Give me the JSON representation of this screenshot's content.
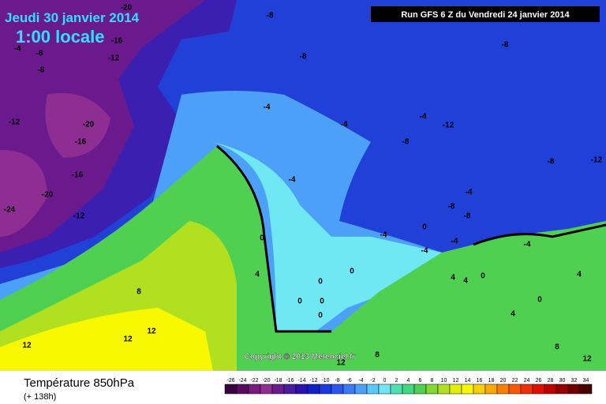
{
  "header": {
    "date": "Jeudi 30 janvier 2014",
    "time": "1:00 locale",
    "run": "Run GFS 6 Z du Vendredi 24 janvier 2014"
  },
  "map": {
    "copyright": "Copyright © 2013 Meteociel.fr",
    "contour_labels": [
      -20,
      -8,
      -16,
      -4,
      -8,
      -12,
      -8,
      -8,
      -8,
      -12,
      -20,
      -16,
      -4,
      -4,
      -4,
      -12,
      -8,
      -16,
      -8,
      -12,
      -20,
      -4,
      -24,
      -12,
      -4,
      -8,
      -8,
      -4,
      0,
      -4,
      -4,
      -4,
      0,
      0,
      4,
      4,
      4,
      0,
      4,
      8,
      0,
      0,
      0,
      0,
      0,
      4,
      12,
      12,
      12,
      8,
      8,
      12,
      12
    ]
  },
  "footer": {
    "title": "Température 850hPa",
    "subtitle": "(+ 138h)"
  },
  "scale": {
    "ticks": [
      -26,
      -24,
      -22,
      -20,
      -18,
      -16,
      -14,
      -12,
      -10,
      -8,
      -6,
      -4,
      -2,
      0,
      2,
      4,
      6,
      8,
      10,
      12,
      14,
      16,
      18,
      20,
      22,
      24,
      26,
      28,
      30,
      32,
      34
    ],
    "colors": [
      "#3a0040",
      "#5a0a5e",
      "#7a1a80",
      "#8e2e92",
      "#6a1a8c",
      "#4a1aa0",
      "#2a10b0",
      "#1020c8",
      "#1838e0",
      "#2a55f0",
      "#3c7af5",
      "#4da0f8",
      "#5cc8fa",
      "#70e8f4",
      "#50e0b0",
      "#40d880",
      "#50d050",
      "#80d830",
      "#b0e020",
      "#e0f000",
      "#f8f800",
      "#f8d000",
      "#f8a800",
      "#f88000",
      "#f85800",
      "#f03000",
      "#e01000",
      "#c00000",
      "#980000",
      "#700000",
      "#480000"
    ]
  }
}
